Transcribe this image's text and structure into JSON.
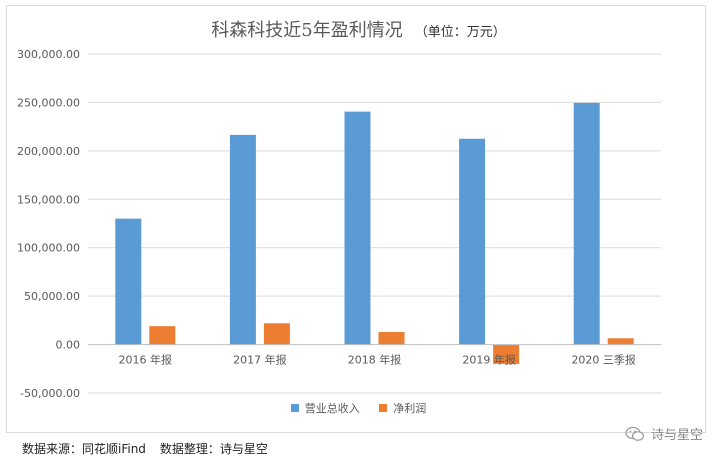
{
  "chart_data": {
    "type": "bar",
    "title": "科森科技近5年盈利情况",
    "unit_note": "（单位：万元）",
    "categories": [
      "2016 年报",
      "2017 年报",
      "2018 年报",
      "2019 年报",
      "2020 三季报"
    ],
    "series": [
      {
        "name": "营业总收入",
        "color": "#5b9bd5",
        "values": [
          130000,
          216500,
          240500,
          212500,
          249500
        ]
      },
      {
        "name": "净利润",
        "color": "#ed7d31",
        "values": [
          19000,
          22000,
          13000,
          -20000,
          6500
        ]
      }
    ],
    "ylim": [
      -50000,
      300000
    ],
    "yticks": [
      -50000,
      0,
      50000,
      100000,
      150000,
      200000,
      250000,
      300000
    ],
    "ytick_labels": [
      "-50,000.00",
      "0.00",
      "50,000.00",
      "100,000.00",
      "150,000.00",
      "200,000.00",
      "250,000.00",
      "300,000.00"
    ],
    "grid": true,
    "legend_position": "bottom"
  },
  "footer": {
    "source": "数据来源：同花顺iFind",
    "compiler": "数据整理：诗与星空"
  },
  "watermark": {
    "icon": "wechat-icon",
    "text": "诗与星空"
  }
}
